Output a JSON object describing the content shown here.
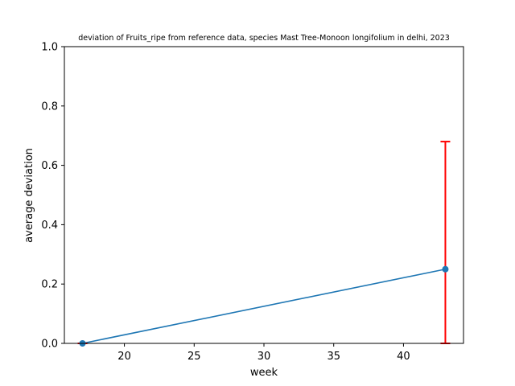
{
  "chart_data": {
    "type": "line",
    "title": "deviation of Fruits_ripe from reference data, species Mast Tree-Monoon longifolium in delhi, 2023",
    "xlabel": "week",
    "ylabel": "average deviation",
    "xlim": [
      15.7,
      44.3
    ],
    "ylim": [
      0,
      1.0
    ],
    "xticks": [
      20,
      25,
      30,
      35,
      40
    ],
    "yticks": [
      0.0,
      0.2,
      0.4,
      0.6,
      0.8,
      1.0
    ],
    "grid": false,
    "series": [
      {
        "color": "#1f77b4",
        "marker": "circle",
        "points": [
          {
            "x": 17,
            "y": 0.0,
            "err": 0.0
          },
          {
            "x": 43,
            "y": 0.25,
            "err": 0.43
          }
        ]
      }
    ],
    "errorbar_color": "#ff0000"
  }
}
